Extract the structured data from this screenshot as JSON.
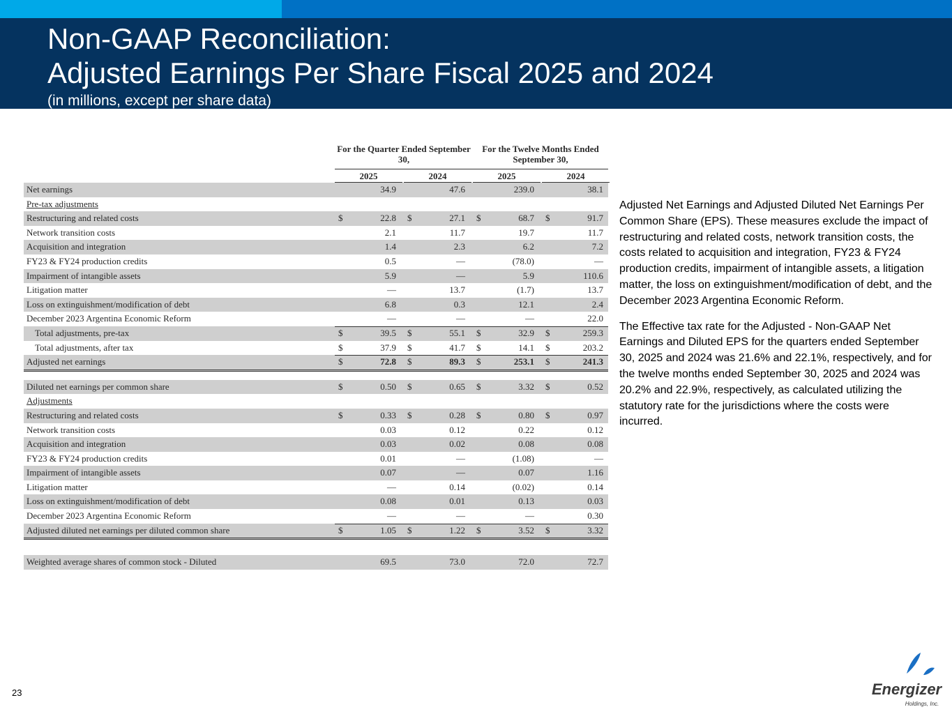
{
  "header": {
    "title_line1": "Non-GAAP Reconciliation:",
    "title_line2": "Adjusted Earnings Per Share Fiscal 2025 and 2024",
    "subtitle": "(in millions, except per share data)"
  },
  "table": {
    "group1": "For the Quarter Ended September 30,",
    "group2": "For the Twelve Months Ended September 30,",
    "years": [
      "2025",
      "2024",
      "2025",
      "2024"
    ],
    "rows": [
      {
        "label": "Net earnings",
        "v": [
          "34.9",
          "47.6",
          "239.0",
          "38.1"
        ]
      },
      {
        "label": "Pre-tax adjustments"
      },
      {
        "label": "Restructuring and related costs",
        "d": "$",
        "v": [
          "22.8",
          "27.1",
          "68.7",
          "91.7"
        ]
      },
      {
        "label": "Network transition costs",
        "v": [
          "2.1",
          "11.7",
          "19.7",
          "11.7"
        ]
      },
      {
        "label": "Acquisition and integration",
        "v": [
          "1.4",
          "2.3",
          "6.2",
          "7.2"
        ]
      },
      {
        "label": "FY23 & FY24 production credits",
        "v": [
          "0.5",
          "—",
          "(78.0)",
          "—"
        ]
      },
      {
        "label": "Impairment of intangible assets",
        "v": [
          "5.9",
          "—",
          "5.9",
          "110.6"
        ]
      },
      {
        "label": "Litigation matter",
        "v": [
          "—",
          "13.7",
          "(1.7)",
          "13.7"
        ]
      },
      {
        "label": "Loss on extinguishment/modification of debt",
        "v": [
          "6.8",
          "0.3",
          "12.1",
          "2.4"
        ]
      },
      {
        "label": "December 2023 Argentina Economic Reform",
        "v": [
          "—",
          "—",
          "—",
          "22.0"
        ]
      },
      {
        "label": "Total adjustments, pre-tax",
        "d": "$",
        "v": [
          "39.5",
          "55.1",
          "32.9",
          "259.3"
        ]
      },
      {
        "label": "Total adjustments, after tax",
        "d": "$",
        "v": [
          "37.9",
          "41.7",
          "14.1",
          "203.2"
        ]
      },
      {
        "label": "Adjusted net earnings",
        "d": "$",
        "v": [
          "72.8",
          "89.3",
          "253.1",
          "241.3"
        ]
      },
      {
        "label": "Diluted net earnings per common share",
        "d": "$",
        "v": [
          "0.50",
          "0.65",
          "3.32",
          "0.52"
        ]
      },
      {
        "label": "Adjustments"
      },
      {
        "label": "Restructuring and related costs",
        "d": "$",
        "v": [
          "0.33",
          "0.28",
          "0.80",
          "0.97"
        ]
      },
      {
        "label": "Network transition costs",
        "v": [
          "0.03",
          "0.12",
          "0.22",
          "0.12"
        ]
      },
      {
        "label": "Acquisition and integration",
        "v": [
          "0.03",
          "0.02",
          "0.08",
          "0.08"
        ]
      },
      {
        "label": "FY23 & FY24 production credits",
        "v": [
          "0.01",
          "—",
          "(1.08)",
          "—"
        ]
      },
      {
        "label": "Impairment of intangible assets",
        "v": [
          "0.07",
          "—",
          "0.07",
          "1.16"
        ]
      },
      {
        "label": "Litigation matter",
        "v": [
          "—",
          "0.14",
          "(0.02)",
          "0.14"
        ]
      },
      {
        "label": "Loss on extinguishment/modification of debt",
        "v": [
          "0.08",
          "0.01",
          "0.13",
          "0.03"
        ]
      },
      {
        "label": "December 2023 Argentina Economic Reform",
        "v": [
          "—",
          "—",
          "—",
          "0.30"
        ]
      },
      {
        "label": "Adjusted diluted net earnings per diluted common share",
        "d": "$",
        "v": [
          "1.05",
          "1.22",
          "3.52",
          "3.32"
        ]
      },
      {
        "label": "Weighted average shares of common stock - Diluted",
        "v": [
          "69.5",
          "73.0",
          "72.0",
          "72.7"
        ]
      }
    ]
  },
  "notes": {
    "para1": "Adjusted Net Earnings and Adjusted Diluted Net Earnings Per Common Share (EPS).  These measures exclude the impact of restructuring and related costs, network transition costs, the costs related to acquisition and integration, FY23 & FY24 production credits, impairment of intangible assets, a litigation matter, the loss on extinguishment/modification of debt, and the December 2023 Argentina Economic Reform.",
    "para2": "The Effective tax rate for the Adjusted - Non-GAAP Net Earnings and Diluted EPS for the quarters ended September 30, 2025 and 2024 was 21.6% and 22.1%, respectively, and for the twelve months ended September 30, 2025 and 2024 was 20.2% and 22.9%, respectively, as calculated utilizing the statutory rate for the jurisdictions where the costs were incurred."
  },
  "footer": {
    "page_number": "23",
    "logo_name": "Energizer",
    "logo_sub": "Holdings, Inc."
  }
}
